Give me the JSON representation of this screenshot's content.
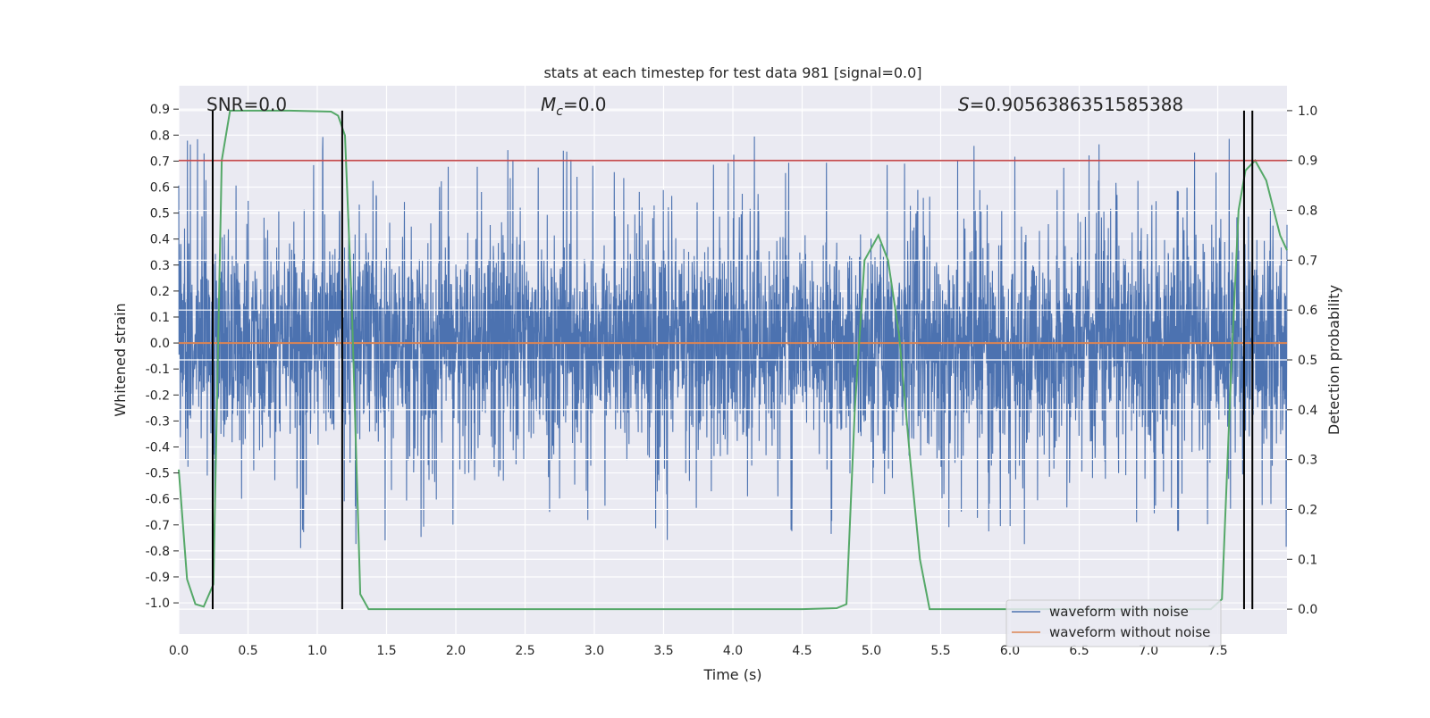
{
  "chart_data": {
    "type": "line",
    "title": "stats at each timestep for test data 981 [signal=0.0]",
    "xlabel": "Time (s)",
    "ylabel_left": "Whitened strain",
    "ylabel_right": "Detection probability",
    "xlim": [
      0.0,
      8.0
    ],
    "ylim_left": [
      -1.12,
      0.99
    ],
    "ylim_right": [
      -0.05,
      1.05
    ],
    "grid": true,
    "x_ticks": [
      "0.0",
      "0.5",
      "1.0",
      "1.5",
      "2.0",
      "2.5",
      "3.0",
      "3.5",
      "4.0",
      "4.5",
      "5.0",
      "5.5",
      "6.0",
      "6.5",
      "7.0",
      "7.5"
    ],
    "y_ticks_left": [
      "0.9",
      "0.8",
      "0.7",
      "0.6",
      "0.5",
      "0.4",
      "0.3",
      "0.2",
      "0.1",
      "0.0",
      "-0.1",
      "-0.2",
      "-0.3",
      "-0.4",
      "-0.5",
      "-0.6",
      "-0.7",
      "-0.8",
      "-0.9",
      "-1.0"
    ],
    "y_ticks_right": [
      "1.0",
      "0.9",
      "0.8",
      "0.7",
      "0.6",
      "0.5",
      "0.4",
      "0.3",
      "0.2",
      "0.1",
      "0.0"
    ],
    "annotations": {
      "snr": "SNR=0.0",
      "mc_symbol": "M",
      "mc_sub": "c",
      "mc_value": "=0.0",
      "s_symbol": "S",
      "s_value": "=0.9056386351585388"
    },
    "legend": {
      "position": "lower-right",
      "entries": [
        "waveform with noise",
        "waveform without noise"
      ]
    },
    "threshold_line": {
      "axis": "right",
      "y": 0.9,
      "color": "#c44e52"
    },
    "vertical_lines": [
      0.245,
      1.18,
      7.69,
      7.75
    ],
    "noise_envelope": {
      "low": -0.42,
      "high": 0.42,
      "seed": 981
    },
    "series": [
      {
        "name": "waveform with noise",
        "axis": "left",
        "color": "#4c72b0",
        "kind": "noise"
      },
      {
        "name": "waveform without noise",
        "axis": "left",
        "color": "#dd8452",
        "x": [
          0.0,
          8.0
        ],
        "values": [
          0.0,
          0.0
        ]
      },
      {
        "name": "detection probability",
        "axis": "right",
        "color": "#55a868",
        "x": [
          0.0,
          0.06,
          0.12,
          0.18,
          0.25,
          0.31,
          0.37,
          0.43,
          0.8,
          1.1,
          1.15,
          1.2,
          1.25,
          1.31,
          1.37,
          1.45,
          2.0,
          3.0,
          4.0,
          4.5,
          4.75,
          4.82,
          4.88,
          4.95,
          5.05,
          5.12,
          5.2,
          5.28,
          5.35,
          5.42,
          5.5,
          6.0,
          7.0,
          7.45,
          7.53,
          7.6,
          7.65,
          7.7,
          7.77,
          7.85,
          7.95,
          8.0
        ],
        "values": [
          0.28,
          0.06,
          0.01,
          0.005,
          0.05,
          0.9,
          1.0,
          1.0,
          1.0,
          0.998,
          0.99,
          0.95,
          0.6,
          0.03,
          0.0,
          0.0,
          0.0,
          0.0,
          0.0,
          0.0,
          0.002,
          0.01,
          0.4,
          0.7,
          0.75,
          0.7,
          0.55,
          0.3,
          0.1,
          0.0,
          0.0,
          0.0,
          0.0,
          0.0,
          0.02,
          0.5,
          0.8,
          0.88,
          0.9,
          0.86,
          0.75,
          0.72
        ]
      }
    ]
  }
}
